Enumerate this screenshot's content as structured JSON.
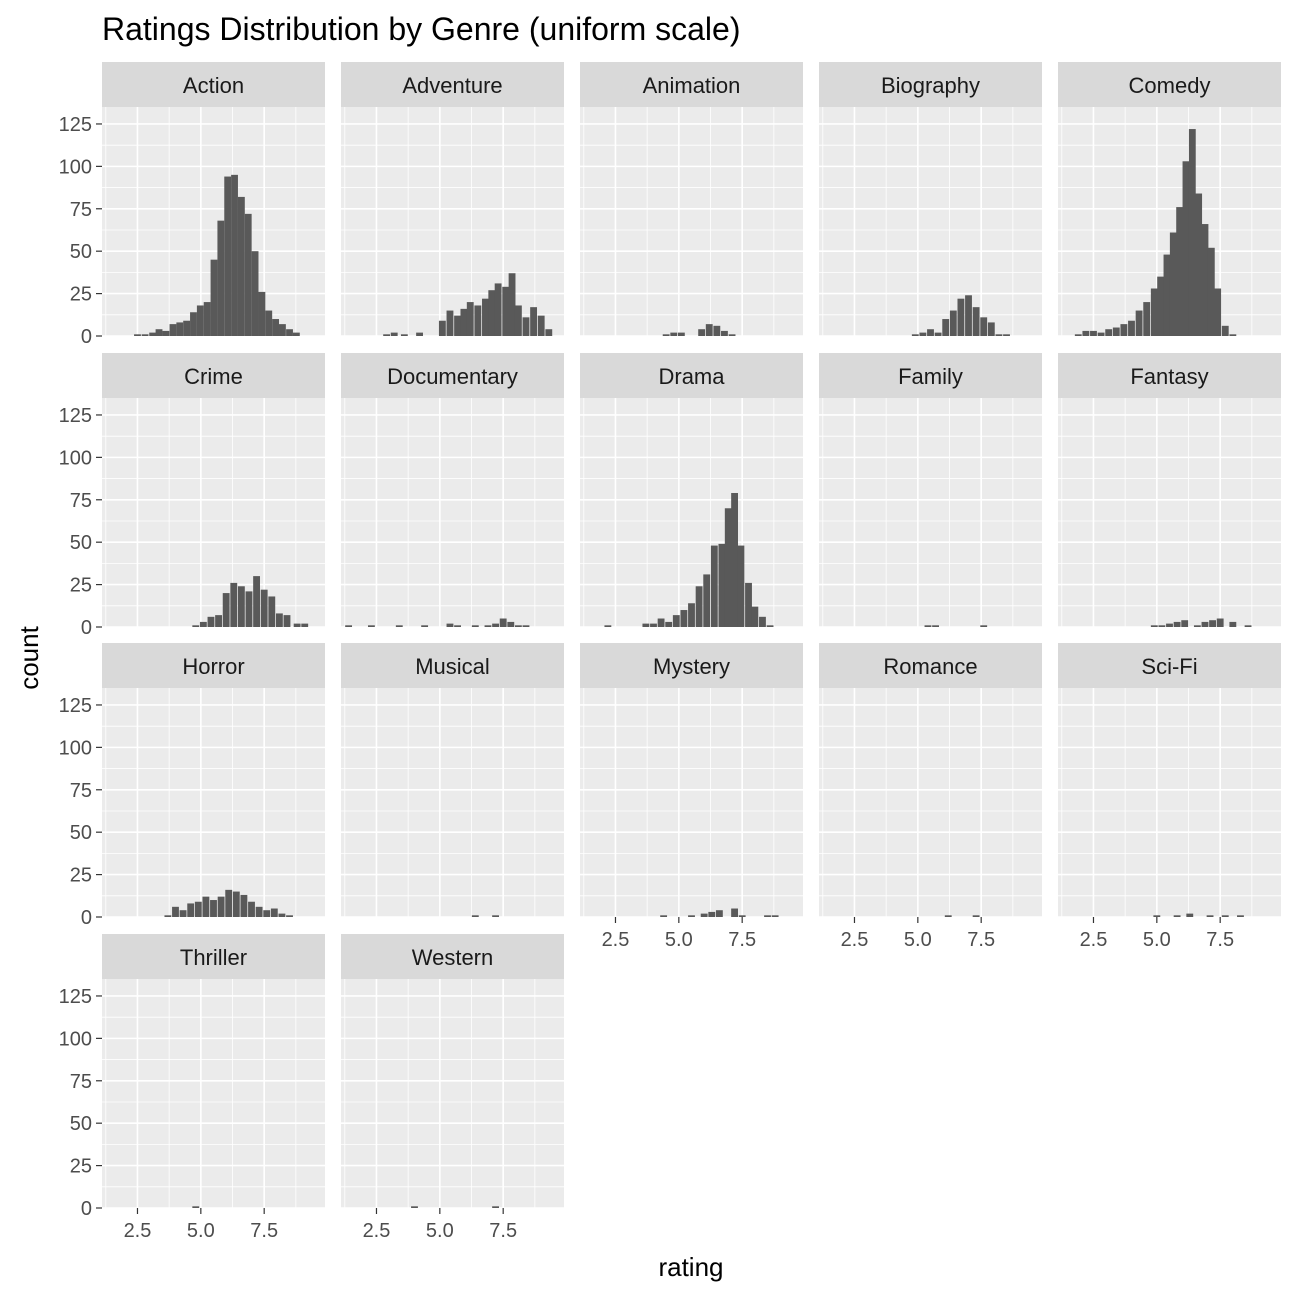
{
  "chart_data": {
    "type": "bar",
    "subtype": "faceted-histogram",
    "title": "Ratings Distribution by Genre (uniform scale)",
    "xlabel": "rating",
    "ylabel": "count",
    "xlim": [
      1.1,
      9.9
    ],
    "ylim": [
      0,
      135
    ],
    "x_ticks": [
      2.5,
      5.0,
      7.5
    ],
    "x_tick_labels": [
      "2.5",
      "5.0",
      "7.5"
    ],
    "y_ticks": [
      0,
      25,
      50,
      75,
      100,
      125
    ],
    "y_tick_labels": [
      "0",
      "25",
      "50",
      "75",
      "100",
      "125"
    ],
    "bin_width": 0.27,
    "grid": true,
    "bar_color": "#595959",
    "panel_bg": "#ebebeb",
    "strip_bg": "#d9d9d9",
    "facets": [
      {
        "name": "Action",
        "bins": [
          [
            2.5,
            1
          ],
          [
            2.8,
            1
          ],
          [
            3.1,
            2
          ],
          [
            3.35,
            4
          ],
          [
            3.62,
            3
          ],
          [
            3.9,
            7
          ],
          [
            4.17,
            8
          ],
          [
            4.44,
            9
          ],
          [
            4.71,
            14
          ],
          [
            4.98,
            18
          ],
          [
            5.25,
            20
          ],
          [
            5.52,
            45
          ],
          [
            5.79,
            68
          ],
          [
            6.06,
            94
          ],
          [
            6.33,
            95
          ],
          [
            6.6,
            82
          ],
          [
            6.87,
            72
          ],
          [
            7.14,
            50
          ],
          [
            7.41,
            26
          ],
          [
            7.68,
            15
          ],
          [
            7.95,
            10
          ],
          [
            8.22,
            7
          ],
          [
            8.5,
            4
          ],
          [
            8.77,
            2
          ]
        ]
      },
      {
        "name": "Adventure",
        "bins": [
          [
            2.9,
            1
          ],
          [
            3.2,
            2
          ],
          [
            3.6,
            1
          ],
          [
            4.2,
            2
          ],
          [
            5.1,
            9
          ],
          [
            5.4,
            15
          ],
          [
            5.7,
            12
          ],
          [
            5.95,
            16
          ],
          [
            6.2,
            20
          ],
          [
            6.5,
            18
          ],
          [
            6.8,
            22
          ],
          [
            7.05,
            27
          ],
          [
            7.3,
            31
          ],
          [
            7.6,
            29
          ],
          [
            7.85,
            37
          ],
          [
            8.1,
            18
          ],
          [
            8.4,
            11
          ],
          [
            8.7,
            17
          ],
          [
            9.0,
            12
          ],
          [
            9.3,
            4
          ]
        ]
      },
      {
        "name": "Animation",
        "bins": [
          [
            4.5,
            1
          ],
          [
            4.8,
            2
          ],
          [
            5.1,
            2
          ],
          [
            5.9,
            4
          ],
          [
            6.2,
            7
          ],
          [
            6.5,
            6
          ],
          [
            6.8,
            3
          ],
          [
            7.1,
            1
          ]
        ]
      },
      {
        "name": "Biography",
        "bins": [
          [
            4.9,
            1
          ],
          [
            5.2,
            2
          ],
          [
            5.5,
            4
          ],
          [
            5.8,
            2
          ],
          [
            6.1,
            10
          ],
          [
            6.4,
            15
          ],
          [
            6.7,
            22
          ],
          [
            7.0,
            24
          ],
          [
            7.3,
            17
          ],
          [
            7.6,
            11
          ],
          [
            7.9,
            8
          ],
          [
            8.2,
            1
          ],
          [
            8.5,
            1
          ]
        ]
      },
      {
        "name": "Comedy",
        "bins": [
          [
            1.9,
            1
          ],
          [
            2.2,
            3
          ],
          [
            2.5,
            3
          ],
          [
            2.8,
            2
          ],
          [
            3.1,
            4
          ],
          [
            3.4,
            5
          ],
          [
            3.7,
            7
          ],
          [
            4.0,
            9
          ],
          [
            4.3,
            15
          ],
          [
            4.6,
            20
          ],
          [
            4.9,
            28
          ],
          [
            5.15,
            35
          ],
          [
            5.4,
            48
          ],
          [
            5.65,
            61
          ],
          [
            5.9,
            76
          ],
          [
            6.15,
            103
          ],
          [
            6.4,
            122
          ],
          [
            6.65,
            84
          ],
          [
            6.9,
            66
          ],
          [
            7.15,
            52
          ],
          [
            7.4,
            28
          ],
          [
            7.7,
            6
          ],
          [
            8.0,
            1
          ]
        ]
      },
      {
        "name": "Crime",
        "bins": [
          [
            4.8,
            1
          ],
          [
            5.1,
            3
          ],
          [
            5.4,
            6
          ],
          [
            5.7,
            7
          ],
          [
            6.0,
            20
          ],
          [
            6.3,
            26
          ],
          [
            6.6,
            24
          ],
          [
            6.9,
            21
          ],
          [
            7.2,
            30
          ],
          [
            7.5,
            22
          ],
          [
            7.8,
            18
          ],
          [
            8.1,
            8
          ],
          [
            8.4,
            7
          ],
          [
            8.8,
            2
          ],
          [
            9.1,
            2
          ]
        ]
      },
      {
        "name": "Documentary",
        "bins": [
          [
            1.4,
            1
          ],
          [
            2.3,
            1
          ],
          [
            3.4,
            1
          ],
          [
            4.4,
            1
          ],
          [
            5.4,
            2
          ],
          [
            5.7,
            1
          ],
          [
            6.4,
            1
          ],
          [
            6.9,
            1
          ],
          [
            7.2,
            2
          ],
          [
            7.5,
            5
          ],
          [
            7.8,
            3
          ],
          [
            8.1,
            1
          ],
          [
            8.4,
            1
          ]
        ]
      },
      {
        "name": "Drama",
        "bins": [
          [
            2.2,
            1
          ],
          [
            3.7,
            2
          ],
          [
            4.0,
            2
          ],
          [
            4.3,
            5
          ],
          [
            4.6,
            3
          ],
          [
            4.9,
            7
          ],
          [
            5.2,
            10
          ],
          [
            5.5,
            14
          ],
          [
            5.8,
            24
          ],
          [
            6.1,
            31
          ],
          [
            6.4,
            48
          ],
          [
            6.7,
            49
          ],
          [
            6.95,
            70
          ],
          [
            7.2,
            79
          ],
          [
            7.45,
            48
          ],
          [
            7.75,
            26
          ],
          [
            8.0,
            12
          ],
          [
            8.3,
            6
          ],
          [
            8.6,
            1
          ]
        ]
      },
      {
        "name": "Family",
        "bins": [
          [
            5.4,
            1
          ],
          [
            5.7,
            1
          ],
          [
            7.6,
            1
          ]
        ]
      },
      {
        "name": "Fantasy",
        "bins": [
          [
            4.9,
            1
          ],
          [
            5.2,
            1
          ],
          [
            5.5,
            2
          ],
          [
            5.8,
            3
          ],
          [
            6.1,
            4
          ],
          [
            6.6,
            1
          ],
          [
            6.9,
            3
          ],
          [
            7.2,
            4
          ],
          [
            7.5,
            5
          ],
          [
            8.0,
            3
          ],
          [
            8.6,
            1
          ]
        ]
      },
      {
        "name": "Horror",
        "bins": [
          [
            3.7,
            1
          ],
          [
            4.0,
            6
          ],
          [
            4.3,
            4
          ],
          [
            4.6,
            8
          ],
          [
            4.9,
            9
          ],
          [
            5.2,
            12
          ],
          [
            5.5,
            10
          ],
          [
            5.8,
            12
          ],
          [
            6.1,
            16
          ],
          [
            6.4,
            15
          ],
          [
            6.7,
            13
          ],
          [
            7.0,
            9
          ],
          [
            7.3,
            6
          ],
          [
            7.6,
            4
          ],
          [
            7.9,
            5
          ],
          [
            8.2,
            2
          ],
          [
            8.5,
            1
          ]
        ]
      },
      {
        "name": "Musical",
        "bins": [
          [
            6.4,
            1
          ],
          [
            7.2,
            1
          ]
        ]
      },
      {
        "name": "Mystery",
        "bins": [
          [
            4.4,
            1
          ],
          [
            5.5,
            1
          ],
          [
            6.0,
            2
          ],
          [
            6.3,
            3
          ],
          [
            6.6,
            4
          ],
          [
            7.2,
            5
          ],
          [
            7.5,
            1
          ],
          [
            8.5,
            1
          ],
          [
            8.8,
            1
          ]
        ]
      },
      {
        "name": "Romance",
        "bins": [
          [
            6.2,
            1
          ],
          [
            7.3,
            1
          ]
        ]
      },
      {
        "name": "Sci-Fi",
        "bins": [
          [
            5.0,
            1
          ],
          [
            5.8,
            1
          ],
          [
            6.3,
            2
          ],
          [
            7.1,
            1
          ],
          [
            7.7,
            1
          ],
          [
            8.3,
            1
          ]
        ]
      },
      {
        "name": "Thriller",
        "bins": [
          [
            4.8,
            1
          ]
        ]
      },
      {
        "name": "Western",
        "bins": [
          [
            4.0,
            1
          ],
          [
            7.2,
            1
          ]
        ]
      }
    ]
  }
}
